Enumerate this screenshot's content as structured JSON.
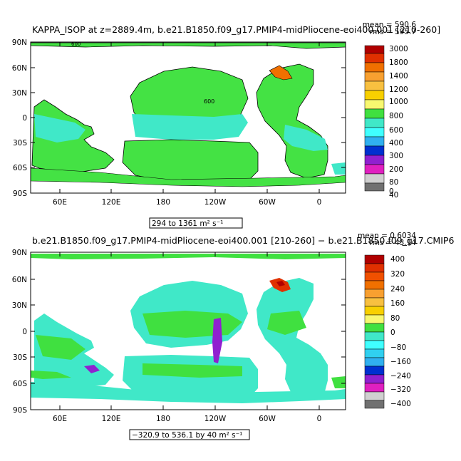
{
  "panels": [
    {
      "title": "KAPPA_ISOP at z=2889.4m, b.e21.B1850.f09_g17.PMIP4-midPliocene-eoi400.001 [210-260]",
      "stat_mean": "mean = 590.6",
      "stat_rms": "rms = 595.7",
      "range_text": "294 to 1361 m² s⁻¹",
      "contour_label": "600",
      "colorbar": {
        "labels": [
          "3000",
          "1800",
          "1400",
          "1200",
          "1000",
          "800",
          "600",
          "400",
          "300",
          "200",
          "80",
          "40",
          "0"
        ],
        "colors": [
          "#b00000",
          "#e03000",
          "#f07000",
          "#f8a030",
          "#f8d000",
          "#f8f870",
          "#40e040",
          "#40e8c8",
          "#40ffff",
          "#30b0f0",
          "#0030d0",
          "#9020d0",
          "#e020c0",
          "#d0d0d0",
          "#707070"
        ]
      },
      "fill": "#44e244"
    },
    {
      "title": "b.e21.B1850.f09_g17.PMIP4-midPliocene-eoi400.001 [210-260] − b.e21.B1850.f09_g17.CMIP6",
      "stat_mean": "mean = 0.6034",
      "stat_rms": "rms = 43.14",
      "range_text": "−320.9 to 536.1 by 40 m² s⁻¹",
      "colorbar": {
        "labels": [
          "400",
          "320",
          "240",
          "160",
          "80",
          "0",
          "−80",
          "−160",
          "−240",
          "−320",
          "−400"
        ],
        "colors": [
          "#b00000",
          "#e03000",
          "#f07000",
          "#f8a030",
          "#f8d000",
          "#f8f870",
          "#40e040",
          "#40e8c8",
          "#40ffff",
          "#30b0f0",
          "#0030d0",
          "#9020d0",
          "#e020c0",
          "#d0d0d0",
          "#707070"
        ]
      },
      "fill": "#40e8c8"
    }
  ],
  "axes": {
    "lat_labels": [
      "90N",
      "60N",
      "30N",
      "0",
      "30S",
      "60S",
      "90S"
    ],
    "lon_labels": [
      "60E",
      "120E",
      "180",
      "120W",
      "60W",
      "0"
    ]
  }
}
